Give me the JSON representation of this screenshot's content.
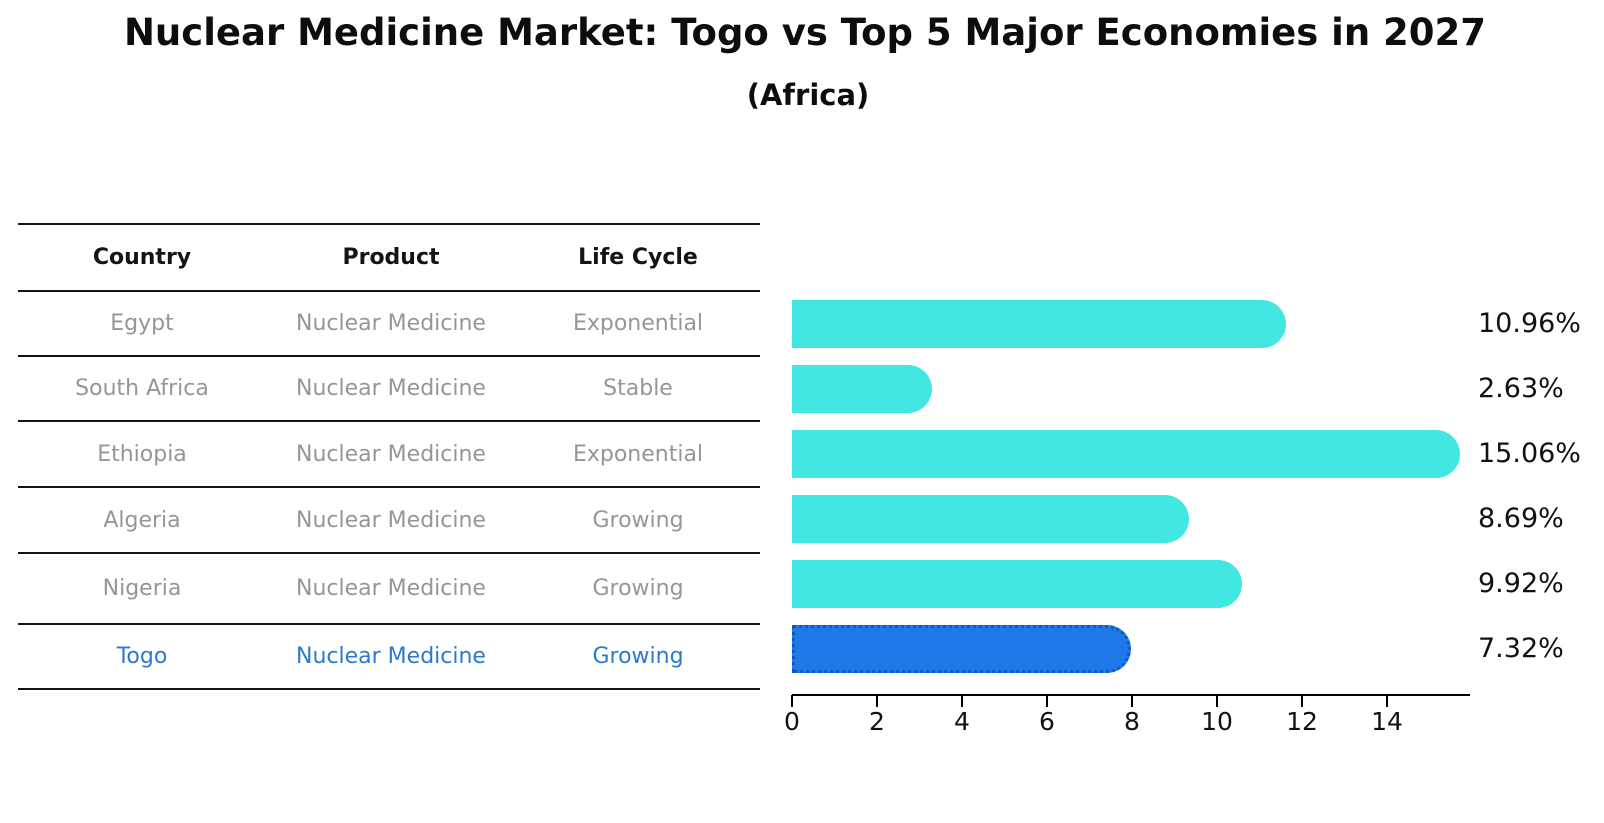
{
  "header": {
    "title": "Nuclear Medicine Market: Togo vs Top 5 Major Economies in 2027",
    "subtitle": "(Africa)"
  },
  "table": {
    "headers": {
      "country": "Country",
      "product": "Product",
      "life_cycle": "Life Cycle"
    },
    "rows": [
      {
        "country": "Egypt",
        "product": "Nuclear Medicine",
        "life_cycle": "Exponential"
      },
      {
        "country": "South Africa",
        "product": "Nuclear Medicine",
        "life_cycle": "Stable"
      },
      {
        "country": "Ethiopia",
        "product": "Nuclear Medicine",
        "life_cycle": "Exponential"
      },
      {
        "country": "Algeria",
        "product": "Nuclear Medicine",
        "life_cycle": "Growing"
      },
      {
        "country": "Nigeria",
        "product": "Nuclear Medicine",
        "life_cycle": "Growing"
      },
      {
        "country": "Togo",
        "product": "Nuclear Medicine",
        "life_cycle": "Growing"
      }
    ],
    "highlight_row": "Togo"
  },
  "chart_data": {
    "type": "bar",
    "orientation": "horizontal",
    "title": "Nuclear Medicine Market: Togo vs Top 5 Major Economies in 2027",
    "subtitle": "(Africa)",
    "categories": [
      "Egypt",
      "South Africa",
      "Ethiopia",
      "Algeria",
      "Nigeria",
      "Togo"
    ],
    "values": [
      10.96,
      2.63,
      15.06,
      8.69,
      9.92,
      7.32
    ],
    "value_labels": [
      "10.96%",
      "2.63%",
      "15.06%",
      "8.69%",
      "9.92%",
      "7.32%"
    ],
    "xticks": [
      0,
      2,
      4,
      6,
      8,
      10,
      12,
      14
    ],
    "xlim": [
      0,
      16
    ],
    "grid": false,
    "legend": "none",
    "highlight_category": "Togo",
    "colors": {
      "bar": "#41e7e0",
      "highlight_bar": "#1e78e8",
      "highlight_border": "#0e5ac4",
      "highlight_text": "#2a7ad0",
      "table_text": "#969696",
      "axis": "#000000"
    }
  }
}
